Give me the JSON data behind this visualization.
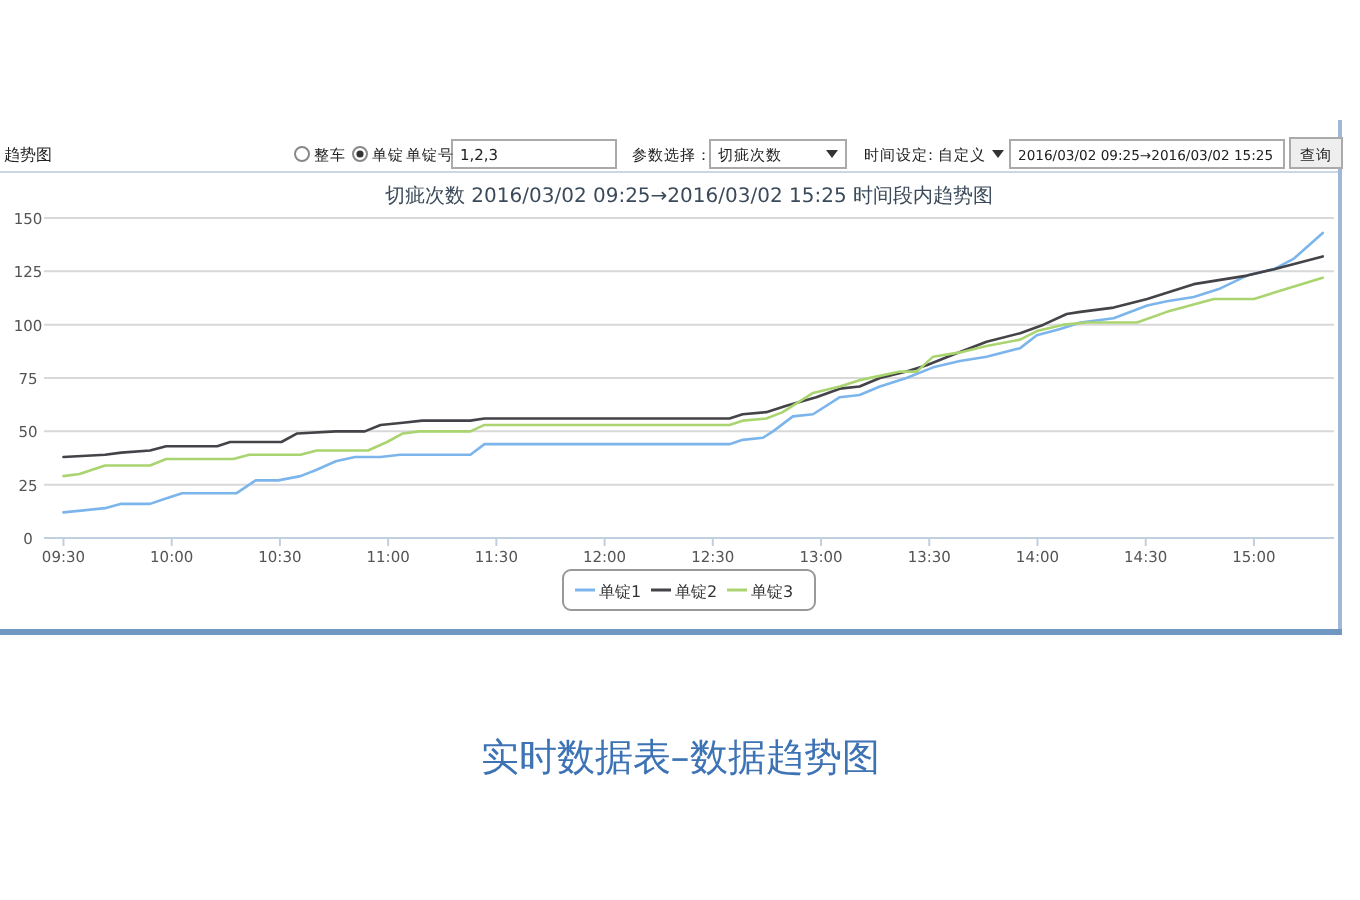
{
  "chart_data": {
    "type": "line",
    "title": "切疵次数 2016/03/02 09:25→2016/03/02 15:25 时间段内趋势图",
    "annotations": [
      "趋势图",
      "整车",
      "单锭",
      "单锭号",
      "1,2,3",
      "参数选择：",
      "切疵次数",
      "时间设定:",
      "自定义",
      "2016/03/02 09:25→2016/03/02 15:25",
      "查询",
      "实时数据表–数据趋势图"
    ],
    "xlim": [
      9.41,
      15.37
    ],
    "xticks": [
      {
        "value": 9.5,
        "label": "09:30"
      },
      {
        "value": 10,
        "label": "10:00"
      },
      {
        "value": 10.5,
        "label": "10:30"
      },
      {
        "value": 11,
        "label": "11:00"
      },
      {
        "value": 11.5,
        "label": "11:30"
      },
      {
        "value": 12,
        "label": "12:00"
      },
      {
        "value": 12.5,
        "label": "12:30"
      },
      {
        "value": 13,
        "label": "13:00"
      },
      {
        "value": 13.5,
        "label": "13:30"
      },
      {
        "value": 14,
        "label": "14:00"
      },
      {
        "value": 14.5,
        "label": "14:30"
      },
      {
        "value": 15,
        "label": "15:00"
      }
    ],
    "ylim": [
      0,
      150
    ],
    "yticks": [
      0,
      25,
      50,
      75,
      100,
      125,
      150
    ],
    "grid": "y",
    "legend": "bottom",
    "marker": "none",
    "line_style": "solid",
    "series": [
      {
        "name": "单锭1",
        "color": "#7cb5ec",
        "x": [
          9.5,
          9.692,
          9.767,
          9.9,
          9.959,
          10.048,
          10.3,
          10.388,
          10.492,
          10.595,
          10.67,
          10.758,
          10.847,
          10.965,
          11.055,
          11.38,
          11.445,
          12.253,
          12.577,
          12.638,
          12.732,
          12.778,
          12.87,
          12.963,
          13.087,
          13.178,
          13.272,
          13.395,
          13.518,
          13.642,
          13.765,
          13.92,
          13.997,
          14.105,
          14.198,
          14.352,
          14.507,
          14.598,
          14.722,
          14.845,
          14.968,
          15.093,
          15.185,
          15.318
        ],
        "values": [
          12,
          14,
          16,
          16,
          18,
          21,
          21,
          27,
          27,
          29,
          32,
          36,
          38,
          38,
          39,
          39,
          44,
          44,
          44,
          46,
          47,
          50,
          57,
          58,
          66,
          67,
          71,
          75,
          80,
          83,
          85,
          89,
          95,
          98,
          101,
          103,
          109,
          111,
          113,
          117,
          123,
          126,
          131,
          143
        ]
      },
      {
        "name": "单锭2",
        "color": "#434348",
        "x": [
          9.5,
          9.692,
          9.767,
          9.9,
          9.974,
          10.21,
          10.27,
          10.507,
          10.58,
          10.758,
          10.892,
          10.965,
          11.068,
          11.158,
          11.38,
          11.445,
          12.253,
          12.577,
          12.638,
          12.747,
          12.84,
          12.978,
          13.087,
          13.178,
          13.272,
          13.395,
          13.488,
          13.612,
          13.765,
          13.92,
          14.028,
          14.135,
          14.198,
          14.352,
          14.507,
          14.598,
          14.722,
          14.845,
          14.968,
          15.093,
          15.318
        ],
        "values": [
          38,
          39,
          40,
          41,
          43,
          43,
          45,
          45,
          49,
          50,
          50,
          53,
          54,
          55,
          55,
          56,
          56,
          56,
          58,
          59,
          62,
          66,
          70,
          71,
          75,
          78,
          81,
          86,
          92,
          96,
          100,
          105,
          106,
          108,
          112,
          115,
          119,
          121,
          123,
          126,
          132
        ]
      },
      {
        "name": "单锭3",
        "color": "#a9d46f",
        "x": [
          9.5,
          9.574,
          9.692,
          9.767,
          9.9,
          9.974,
          10.285,
          10.358,
          10.595,
          10.67,
          10.907,
          10.995,
          11.068,
          11.143,
          11.38,
          11.445,
          12.253,
          12.577,
          12.638,
          12.747,
          12.823,
          12.963,
          13.087,
          13.178,
          13.272,
          13.365,
          13.442,
          13.518,
          13.642,
          13.765,
          13.92,
          13.997,
          14.12,
          14.228,
          14.46,
          14.598,
          14.815,
          15.0,
          15.155,
          15.318
        ],
        "values": [
          29,
          30,
          34,
          34,
          34,
          37,
          37,
          39,
          39,
          41,
          41,
          45,
          49,
          50,
          50,
          53,
          53,
          53,
          55,
          56,
          59,
          68,
          71,
          74,
          76,
          78,
          78,
          85,
          87,
          90,
          93,
          97,
          100,
          101,
          101,
          106,
          112,
          112,
          117,
          122
        ]
      }
    ]
  }
}
